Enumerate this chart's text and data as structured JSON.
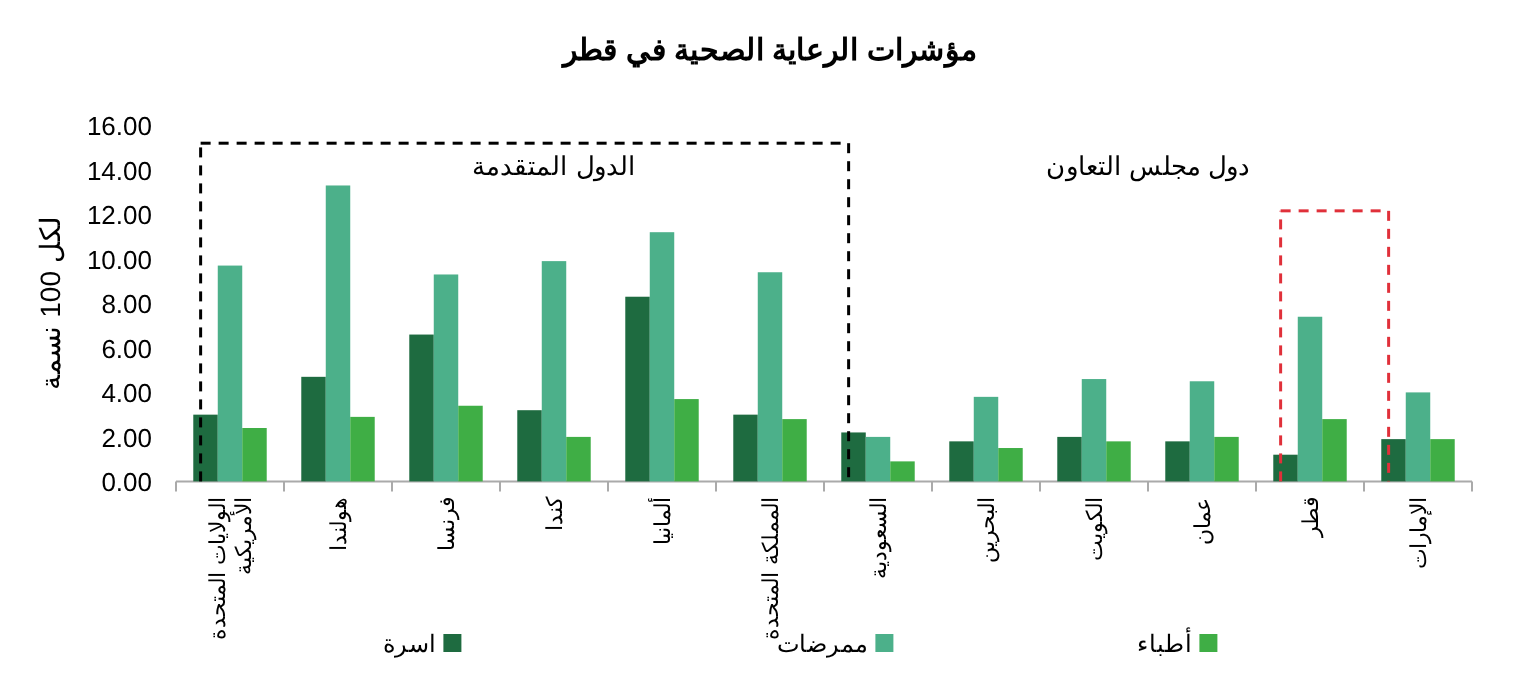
{
  "chart_data": {
    "type": "bar",
    "title": "مؤشرات الرعاية الصحية في قطر",
    "ylabel": "لكل 100 نسمة",
    "categories": [
      "الولايات المتحدة الأمريكية",
      "هولندا",
      "فرنسا",
      "كندا",
      "ألمانيا",
      "المملكة المتحدة",
      "السعودية",
      "البحرين",
      "الكويت",
      "عمان",
      "قطر",
      "الإمارات"
    ],
    "series": [
      {
        "name": "اسرة",
        "color": "#1e6b40",
        "values": [
          3.0,
          4.7,
          6.6,
          3.2,
          8.3,
          3.0,
          2.2,
          1.8,
          2.0,
          1.8,
          1.2,
          1.9
        ]
      },
      {
        "name": "ممرضات",
        "color": "#4cb08a",
        "values": [
          9.7,
          13.3,
          9.3,
          9.9,
          11.2,
          9.4,
          2.0,
          3.8,
          4.6,
          4.5,
          7.4,
          4.0
        ]
      },
      {
        "name": "أطباء",
        "color": "#3fae45",
        "values": [
          2.4,
          2.9,
          3.4,
          2.0,
          3.7,
          2.8,
          0.9,
          1.5,
          1.8,
          2.0,
          2.8,
          1.9
        ]
      }
    ],
    "ylim": [
      0,
      16
    ],
    "yticks": [
      {
        "value": 0,
        "label": "0.00"
      },
      {
        "value": 2,
        "label": "2.00"
      },
      {
        "value": 4,
        "label": "4.00"
      },
      {
        "value": 6,
        "label": "6.00"
      },
      {
        "value": 8,
        "label": "8.00"
      },
      {
        "value": 10,
        "label": "10.00"
      },
      {
        "value": 12,
        "label": "12.00"
      },
      {
        "value": 14,
        "label": "14.00"
      },
      {
        "value": 16,
        "label": "16.00"
      }
    ],
    "annotations": [
      "الدول المتقدمة",
      "دول مجلس التعاون"
    ],
    "grid": false,
    "legend": "bottom"
  }
}
